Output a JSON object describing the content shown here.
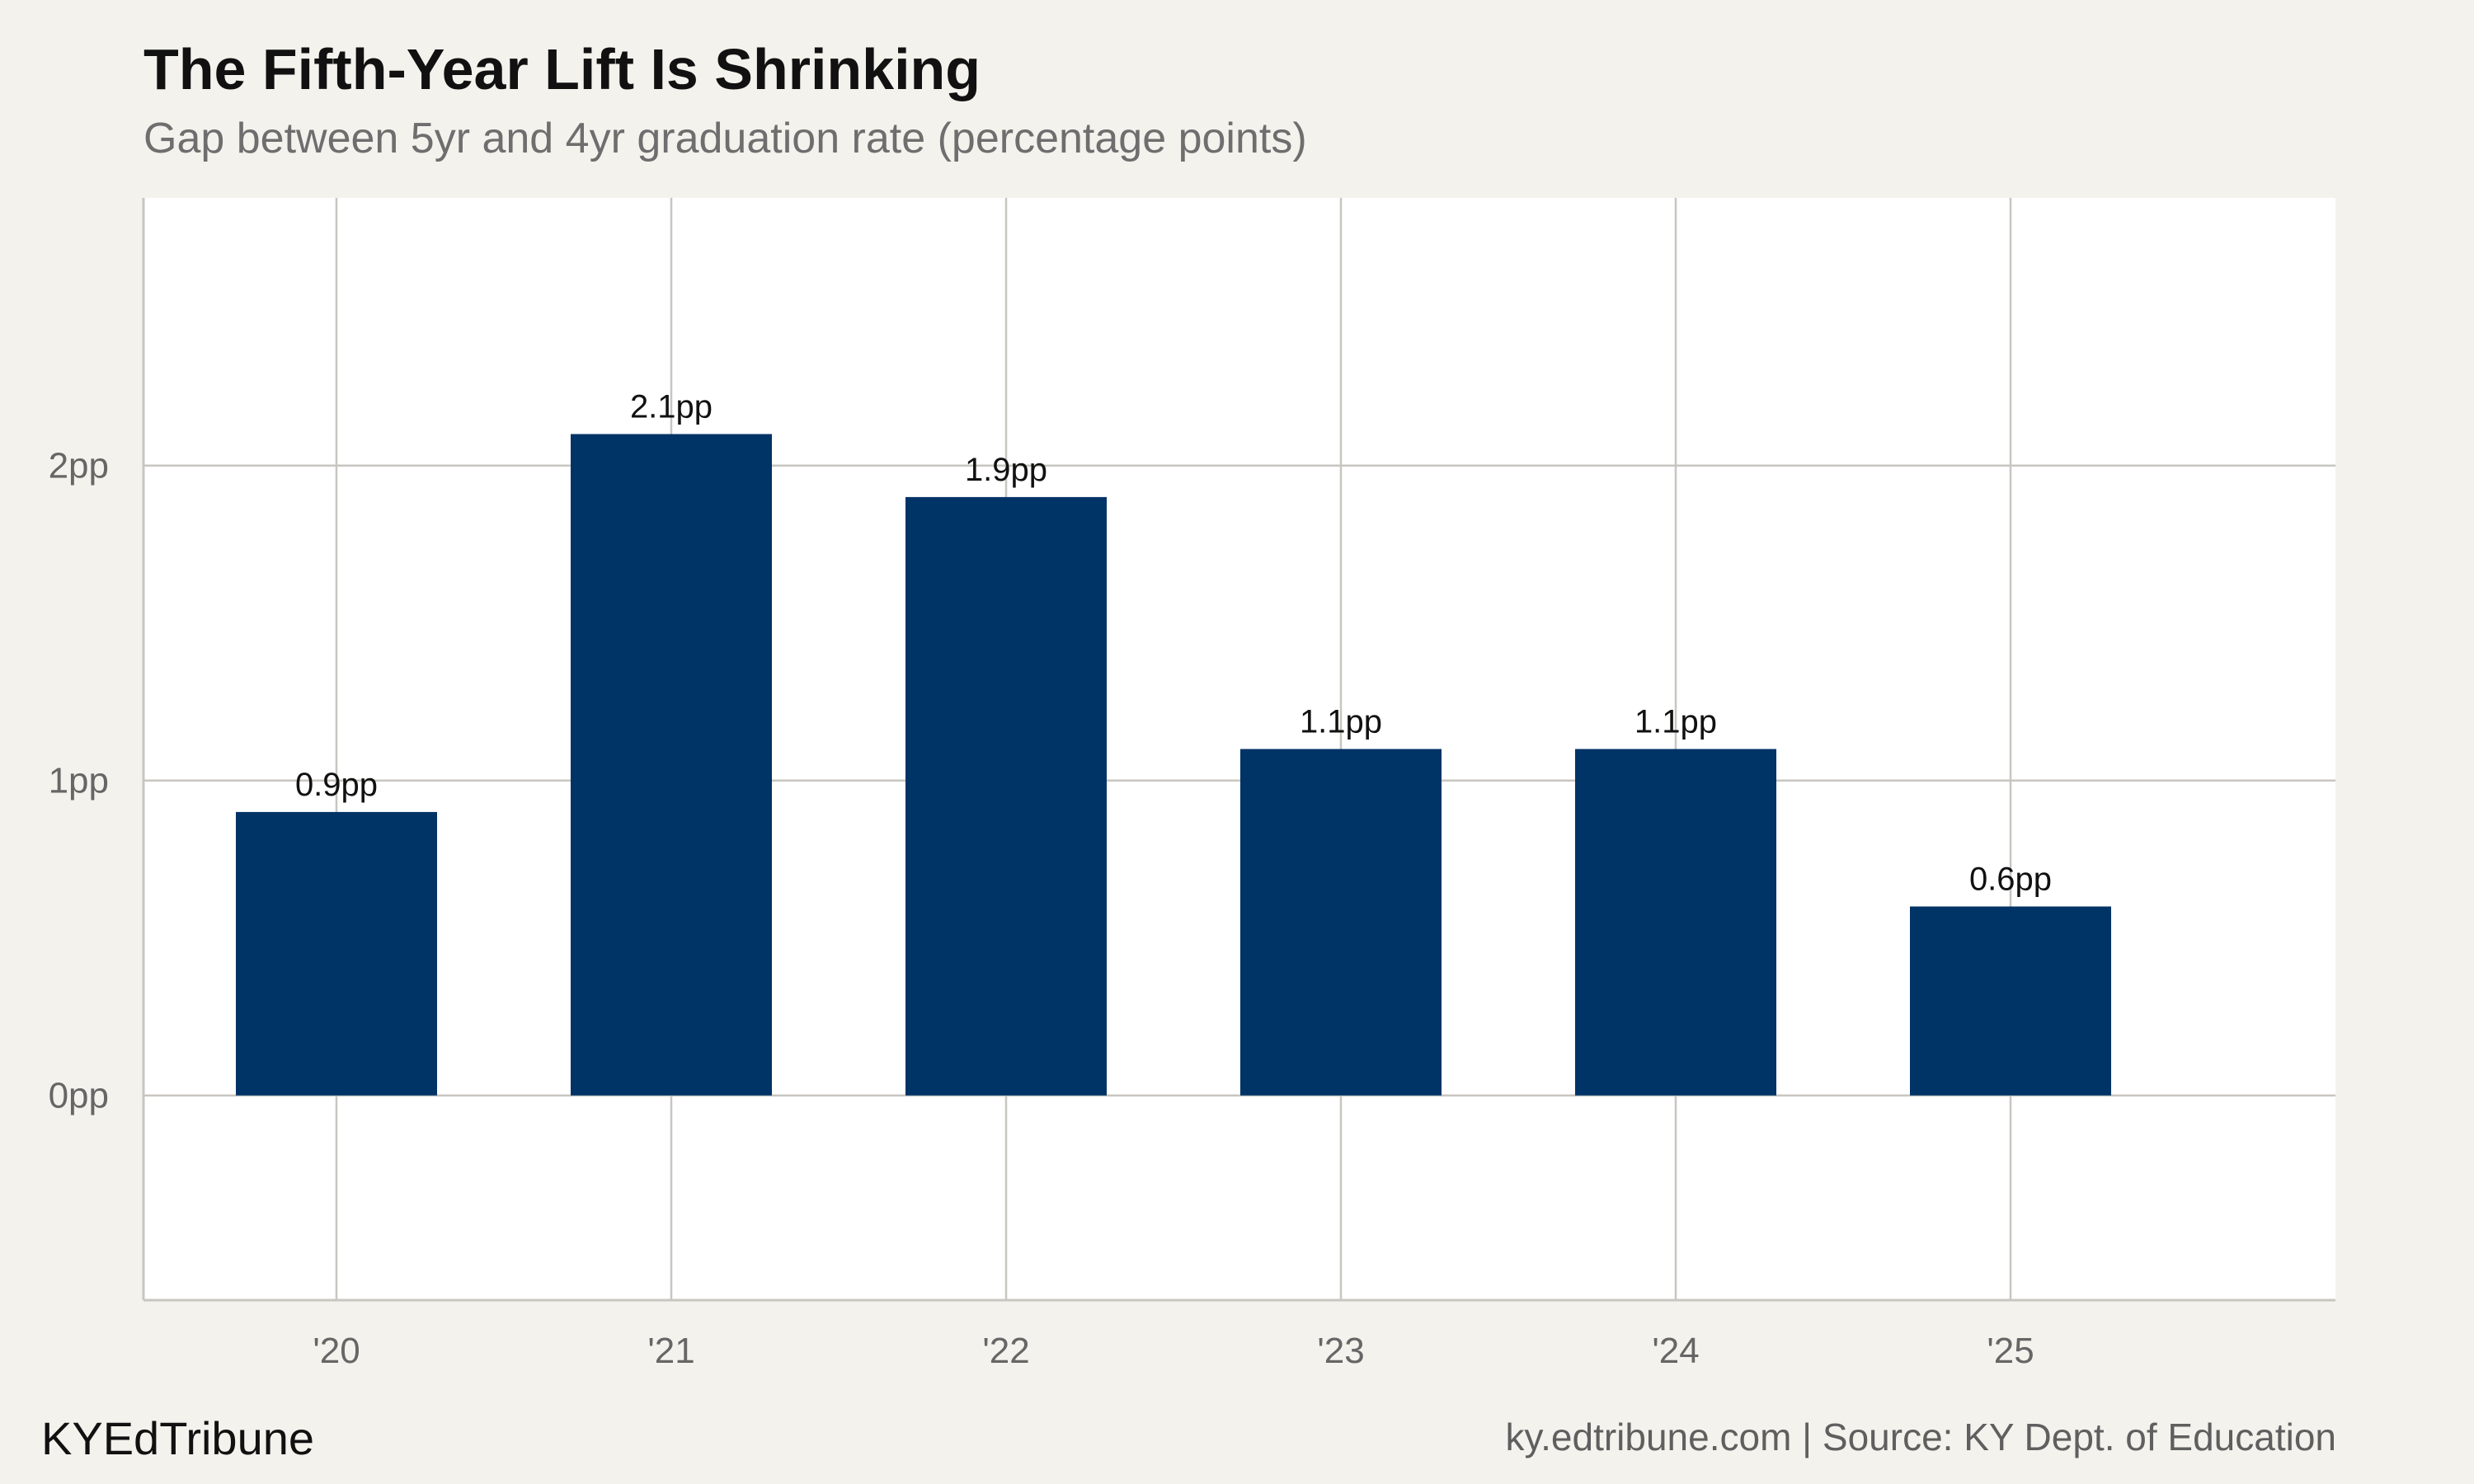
{
  "header": {
    "title": "The Fifth-Year Lift Is Shrinking",
    "subtitle": "Gap between 5yr and 4yr graduation rate (percentage points)"
  },
  "footer": {
    "brand": "KYEdTribune",
    "source": "ky.edtribune.com | Source: KY Dept. of Education"
  },
  "colors": {
    "bar": "#003366",
    "grid": "#c8c6c0",
    "panel": "#ffffff",
    "background": "#f4f2ed"
  },
  "chart_data": {
    "type": "bar",
    "title": "The Fifth-Year Lift Is Shrinking",
    "subtitle": "Gap between 5yr and 4yr graduation rate (percentage points)",
    "xlabel": "",
    "ylabel": "",
    "categories": [
      "'20",
      "'21",
      "'22",
      "'23",
      "'24",
      "'25"
    ],
    "values": [
      0.9,
      2.1,
      1.9,
      1.1,
      1.1,
      0.6
    ],
    "data_labels": [
      "0.9pp",
      "2.1pp",
      "1.9pp",
      "1.1pp",
      "1.1pp",
      "0.6pp"
    ],
    "yticks": [
      0,
      1,
      2
    ],
    "ytick_labels": [
      "0pp",
      "1pp",
      "2pp"
    ],
    "ylim": [
      -0.65,
      2.85
    ],
    "grid": true,
    "legend": "none"
  }
}
